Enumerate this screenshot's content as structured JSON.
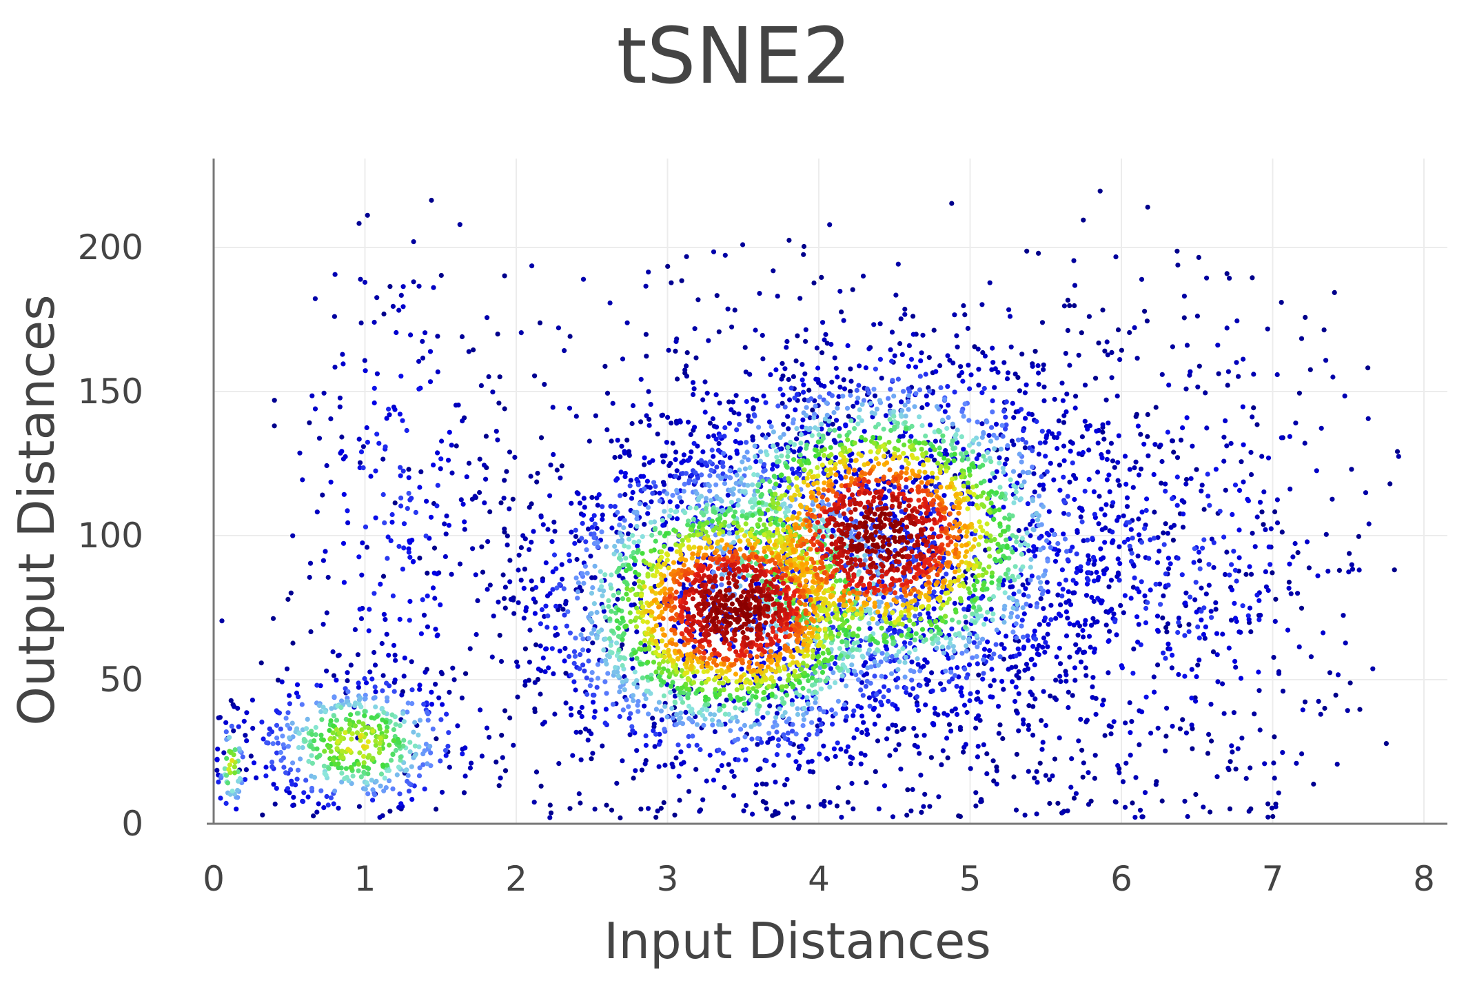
{
  "chart_data": {
    "type": "scatter",
    "title": "tSNE2",
    "xlabel": "Input Distances",
    "ylabel": "Output Distances",
    "xlim": [
      0,
      8.1
    ],
    "ylim": [
      0,
      225
    ],
    "xticks": [
      0,
      1,
      2,
      3,
      4,
      5,
      6,
      7,
      8
    ],
    "yticks": [
      0,
      50,
      100,
      150,
      200
    ],
    "xtick_labels": [
      "0",
      "1",
      "2",
      "3",
      "4",
      "5",
      "6",
      "7",
      "8"
    ],
    "ytick_labels": [
      "0",
      "50",
      "100",
      "150",
      "200"
    ],
    "grid": true,
    "legend": "none",
    "colorscale": "jet (color encodes point density: dark blue = low, dark red = high)",
    "colors": {
      "title": "#444444",
      "axis_text": "#444444",
      "grid": "#ececec",
      "axis_line": "#777777",
      "jet_low": "#00008b",
      "jet_high": "#8b0000"
    },
    "total_points_shown": "approximately 8000",
    "clusters": [
      {
        "name": "near-origin streak",
        "x_center": 0.12,
        "y_center": 20,
        "x_spread": 0.05,
        "y_spread": 9,
        "points": 60,
        "peak_density": "medium"
      },
      {
        "name": "low arm",
        "x_center": 0.95,
        "y_center": 28,
        "x_spread": 0.35,
        "y_spread": 12,
        "points": 500,
        "peak_density": "medium"
      },
      {
        "name": "upper sparse column",
        "x_center": 1.2,
        "y_center": 110,
        "x_spread": 0.35,
        "y_spread": 45,
        "points": 250,
        "peak_density": "low"
      },
      {
        "name": "main blob left lobe",
        "x_center": 3.45,
        "y_center": 75,
        "x_spread": 0.6,
        "y_spread": 25,
        "points": 2600,
        "peak_density": "high"
      },
      {
        "name": "main blob right lobe",
        "x_center": 4.4,
        "y_center": 100,
        "x_spread": 0.65,
        "y_spread": 28,
        "points": 2400,
        "peak_density": "high"
      },
      {
        "name": "broad halo",
        "x_center": 4.3,
        "y_center": 90,
        "x_spread": 1.3,
        "y_spread": 45,
        "points": 1800,
        "peak_density": "low"
      },
      {
        "name": "right sparse tail",
        "x_center": 6.3,
        "y_center": 90,
        "x_spread": 0.7,
        "y_spread": 45,
        "points": 450,
        "peak_density": "low"
      }
    ]
  }
}
